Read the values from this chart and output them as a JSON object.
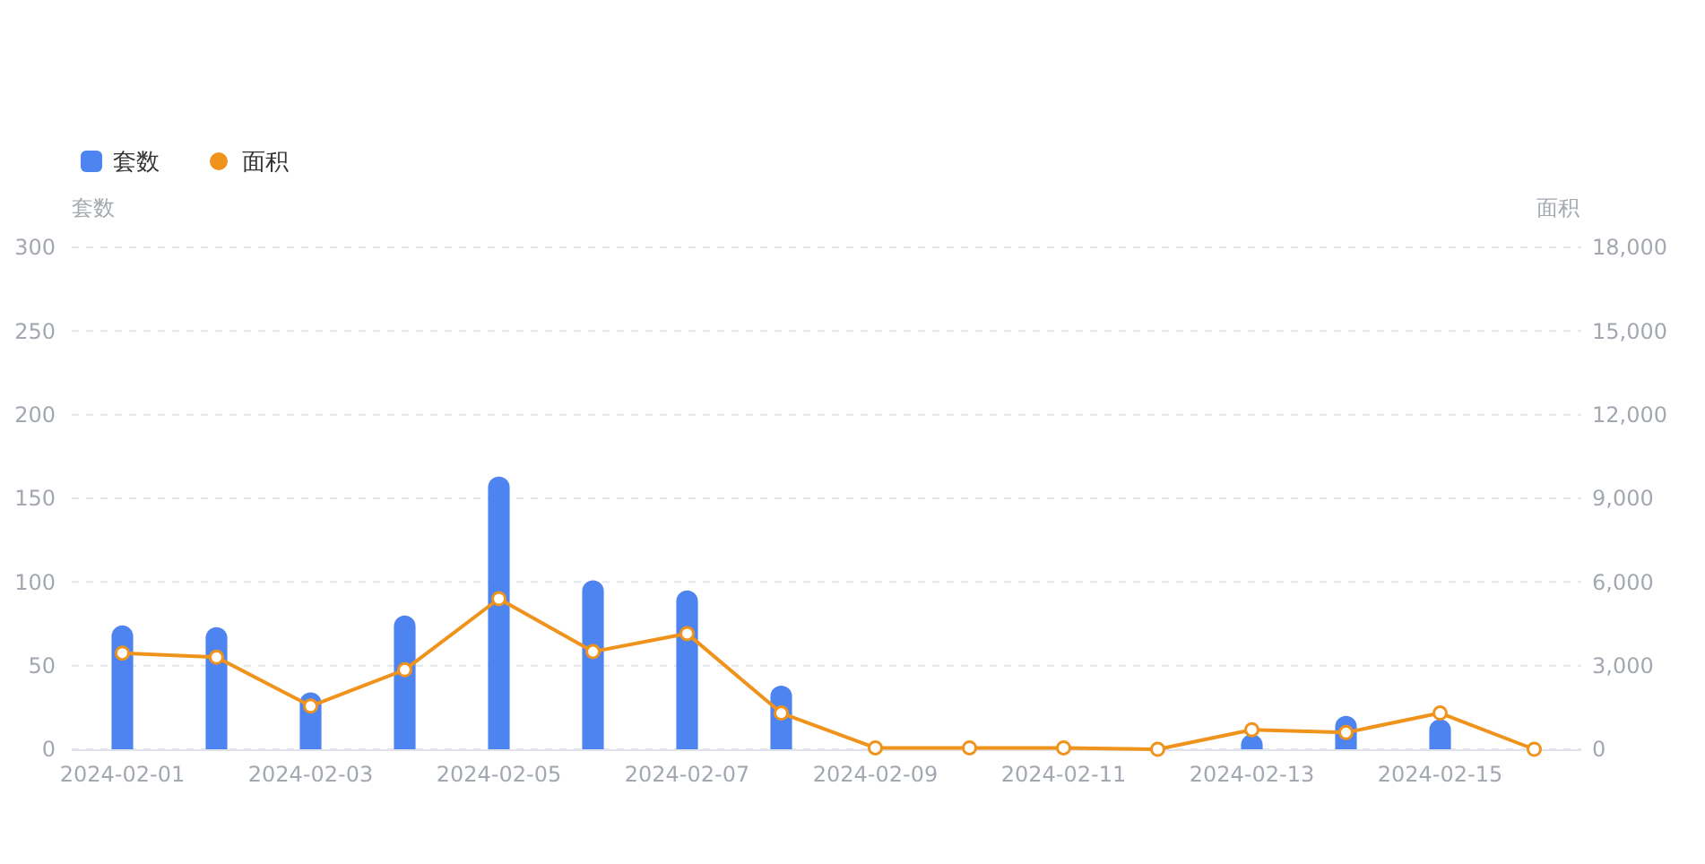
{
  "chart_data": {
    "type": "bar",
    "categories": [
      "2024-02-01",
      null,
      "2024-02-03",
      null,
      "2024-02-05",
      null,
      "2024-02-07",
      null,
      "2024-02-09",
      null,
      "2024-02-11",
      null,
      "2024-02-13",
      null,
      "2024-02-15",
      null
    ],
    "series": [
      {
        "name": "套数",
        "color": "#4e84f0",
        "values": [
          74,
          73,
          34,
          80,
          163,
          101,
          95,
          38,
          0,
          0,
          0,
          0,
          9,
          20,
          18,
          0
        ]
      },
      {
        "name": "面积",
        "type": "line",
        "axis": "y2",
        "color": "#f0931c",
        "values": [
          3450,
          3300,
          1550,
          2850,
          5400,
          3500,
          4150,
          1300,
          50,
          50,
          50,
          0,
          700,
          600,
          1300,
          0
        ]
      }
    ],
    "ylabel": "套数",
    "y2label": "面积",
    "ylim": [
      0,
      300
    ],
    "yticks": [
      0,
      50,
      100,
      150,
      200,
      250,
      300
    ],
    "y2lim": [
      0,
      18000
    ],
    "y2ticks": [
      0,
      {
        "value": 3000,
        "label": "3,000"
      },
      {
        "value": 6000,
        "label": "6,000"
      },
      {
        "value": 9000,
        "label": "9,000"
      },
      {
        "value": 12000,
        "label": "12,000"
      },
      {
        "value": 15000,
        "label": "15,000"
      },
      {
        "value": 18000,
        "label": "18,000"
      }
    ],
    "grid": "y",
    "legend": "top left",
    "marker": "circle",
    "line_style": "solid"
  }
}
